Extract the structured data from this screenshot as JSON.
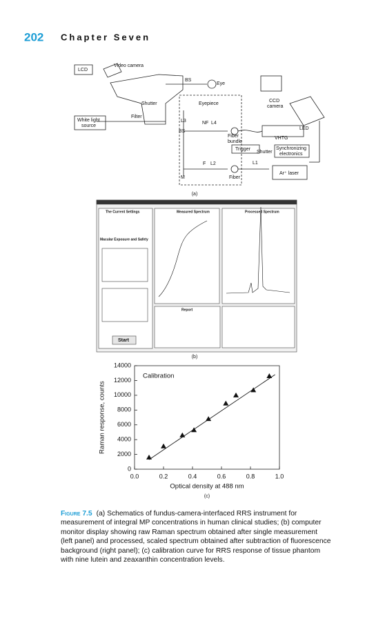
{
  "header": {
    "page_number": "202",
    "chapter": "Chapter Seven"
  },
  "panel_a": {
    "labels": [
      "LCD",
      "Video camera",
      "BS",
      "Eye",
      "Shutter",
      "Eyepiece",
      "CCD",
      "camera",
      "White light",
      "source",
      "Filter",
      "L3",
      "NF",
      "L4",
      "BS",
      "LED",
      "Fiber",
      "bundle",
      "VHTG",
      "Trigger",
      "Shutter",
      "Synchronizing",
      "electronics",
      "L1",
      "F",
      "L2",
      "M",
      "Fiber",
      "Ar⁺ laser"
    ],
    "tag": "(a)"
  },
  "panel_b": {
    "labels": [
      "The Current Settings",
      "Macular Exposure and Safety",
      "Start",
      "Measured Spectrum",
      "Processed Spectrum",
      "Report"
    ],
    "tag": "(b)"
  },
  "panel_c": {
    "chart_data": {
      "type": "scatter",
      "title": "Calibration",
      "x_label": "Optical density at 488 nm",
      "y_label": "Raman response, counts",
      "x": [
        0.1,
        0.2,
        0.33,
        0.41,
        0.51,
        0.63,
        0.7,
        0.82,
        0.93
      ],
      "values": [
        1600,
        3100,
        4600,
        5300,
        6800,
        8900,
        10000,
        10700,
        12600
      ],
      "fit_line": {
        "x": [
          0.1,
          0.97
        ],
        "values": [
          1300,
          12800
        ]
      },
      "xlim": [
        0,
        1
      ],
      "ylim": [
        0,
        14000
      ],
      "xticks": [
        {
          "value": 0,
          "label": "0.0"
        },
        0.2,
        0.4,
        0.6,
        0.8,
        {
          "value": 1,
          "label": "1.0"
        }
      ],
      "yticks": [
        0,
        2000,
        4000,
        6000,
        8000,
        10000,
        12000,
        14000
      ],
      "color": "#111111"
    },
    "tag": "(c)"
  },
  "caption": {
    "label": "Figure 7.5",
    "text": "(a) Schematics of fundus-camera-interfaced RRS instrument for measurement of integral MP concentrations in human clinical studies; (b) computer monitor display showing raw Raman spectrum obtained after single measurement (left panel) and processed, scaled spectrum obtained after subtraction of fluorescence background (right panel); (c) calibration curve for RRS response of tissue phantom with nine lutein and zeaxanthin concentration levels."
  }
}
